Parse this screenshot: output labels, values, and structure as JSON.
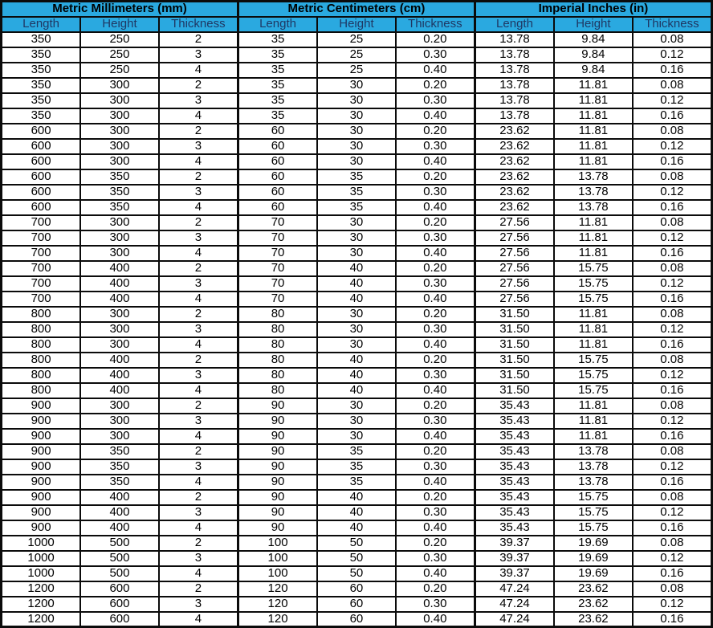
{
  "colors": {
    "header_bg": "#2aa9e0",
    "border_color": "#0b0b0b",
    "group_title_text": "#000000",
    "column_header_text": "#1f3864",
    "cell_text": "#000000",
    "row_bg": "#ffffff"
  },
  "table": {
    "groups": [
      {
        "title": "Metric Millimeters (mm)",
        "columns": [
          "Length",
          "Height",
          "Thickness"
        ]
      },
      {
        "title": "Metric Centimeters (cm)",
        "columns": [
          "Length",
          "Height",
          "Thickness"
        ]
      },
      {
        "title": "Imperial Inches (in)",
        "columns": [
          "Length",
          "Height",
          "Thickness"
        ]
      }
    ],
    "rows": [
      [
        "350",
        "250",
        "2",
        "35",
        "25",
        "0.20",
        "13.78",
        "9.84",
        "0.08"
      ],
      [
        "350",
        "250",
        "3",
        "35",
        "25",
        "0.30",
        "13.78",
        "9.84",
        "0.12"
      ],
      [
        "350",
        "250",
        "4",
        "35",
        "25",
        "0.40",
        "13.78",
        "9.84",
        "0.16"
      ],
      [
        "350",
        "300",
        "2",
        "35",
        "30",
        "0.20",
        "13.78",
        "11.81",
        "0.08"
      ],
      [
        "350",
        "300",
        "3",
        "35",
        "30",
        "0.30",
        "13.78",
        "11.81",
        "0.12"
      ],
      [
        "350",
        "300",
        "4",
        "35",
        "30",
        "0.40",
        "13.78",
        "11.81",
        "0.16"
      ],
      [
        "600",
        "300",
        "2",
        "60",
        "30",
        "0.20",
        "23.62",
        "11.81",
        "0.08"
      ],
      [
        "600",
        "300",
        "3",
        "60",
        "30",
        "0.30",
        "23.62",
        "11.81",
        "0.12"
      ],
      [
        "600",
        "300",
        "4",
        "60",
        "30",
        "0.40",
        "23.62",
        "11.81",
        "0.16"
      ],
      [
        "600",
        "350",
        "2",
        "60",
        "35",
        "0.20",
        "23.62",
        "13.78",
        "0.08"
      ],
      [
        "600",
        "350",
        "3",
        "60",
        "35",
        "0.30",
        "23.62",
        "13.78",
        "0.12"
      ],
      [
        "600",
        "350",
        "4",
        "60",
        "35",
        "0.40",
        "23.62",
        "13.78",
        "0.16"
      ],
      [
        "700",
        "300",
        "2",
        "70",
        "30",
        "0.20",
        "27.56",
        "11.81",
        "0.08"
      ],
      [
        "700",
        "300",
        "3",
        "70",
        "30",
        "0.30",
        "27.56",
        "11.81",
        "0.12"
      ],
      [
        "700",
        "300",
        "4",
        "70",
        "30",
        "0.40",
        "27.56",
        "11.81",
        "0.16"
      ],
      [
        "700",
        "400",
        "2",
        "70",
        "40",
        "0.20",
        "27.56",
        "15.75",
        "0.08"
      ],
      [
        "700",
        "400",
        "3",
        "70",
        "40",
        "0.30",
        "27.56",
        "15.75",
        "0.12"
      ],
      [
        "700",
        "400",
        "4",
        "70",
        "40",
        "0.40",
        "27.56",
        "15.75",
        "0.16"
      ],
      [
        "800",
        "300",
        "2",
        "80",
        "30",
        "0.20",
        "31.50",
        "11.81",
        "0.08"
      ],
      [
        "800",
        "300",
        "3",
        "80",
        "30",
        "0.30",
        "31.50",
        "11.81",
        "0.12"
      ],
      [
        "800",
        "300",
        "4",
        "80",
        "30",
        "0.40",
        "31.50",
        "11.81",
        "0.16"
      ],
      [
        "800",
        "400",
        "2",
        "80",
        "40",
        "0.20",
        "31.50",
        "15.75",
        "0.08"
      ],
      [
        "800",
        "400",
        "3",
        "80",
        "40",
        "0.30",
        "31.50",
        "15.75",
        "0.12"
      ],
      [
        "800",
        "400",
        "4",
        "80",
        "40",
        "0.40",
        "31.50",
        "15.75",
        "0.16"
      ],
      [
        "900",
        "300",
        "2",
        "90",
        "30",
        "0.20",
        "35.43",
        "11.81",
        "0.08"
      ],
      [
        "900",
        "300",
        "3",
        "90",
        "30",
        "0.30",
        "35.43",
        "11.81",
        "0.12"
      ],
      [
        "900",
        "300",
        "4",
        "90",
        "30",
        "0.40",
        "35.43",
        "11.81",
        "0.16"
      ],
      [
        "900",
        "350",
        "2",
        "90",
        "35",
        "0.20",
        "35.43",
        "13.78",
        "0.08"
      ],
      [
        "900",
        "350",
        "3",
        "90",
        "35",
        "0.30",
        "35.43",
        "13.78",
        "0.12"
      ],
      [
        "900",
        "350",
        "4",
        "90",
        "35",
        "0.40",
        "35.43",
        "13.78",
        "0.16"
      ],
      [
        "900",
        "400",
        "2",
        "90",
        "40",
        "0.20",
        "35.43",
        "15.75",
        "0.08"
      ],
      [
        "900",
        "400",
        "3",
        "90",
        "40",
        "0.30",
        "35.43",
        "15.75",
        "0.12"
      ],
      [
        "900",
        "400",
        "4",
        "90",
        "40",
        "0.40",
        "35.43",
        "15.75",
        "0.16"
      ],
      [
        "1000",
        "500",
        "2",
        "100",
        "50",
        "0.20",
        "39.37",
        "19.69",
        "0.08"
      ],
      [
        "1000",
        "500",
        "3",
        "100",
        "50",
        "0.30",
        "39.37",
        "19.69",
        "0.12"
      ],
      [
        "1000",
        "500",
        "4",
        "100",
        "50",
        "0.40",
        "39.37",
        "19.69",
        "0.16"
      ],
      [
        "1200",
        "600",
        "2",
        "120",
        "60",
        "0.20",
        "47.24",
        "23.62",
        "0.08"
      ],
      [
        "1200",
        "600",
        "3",
        "120",
        "60",
        "0.30",
        "47.24",
        "23.62",
        "0.12"
      ],
      [
        "1200",
        "600",
        "4",
        "120",
        "60",
        "0.40",
        "47.24",
        "23.62",
        "0.16"
      ]
    ]
  }
}
